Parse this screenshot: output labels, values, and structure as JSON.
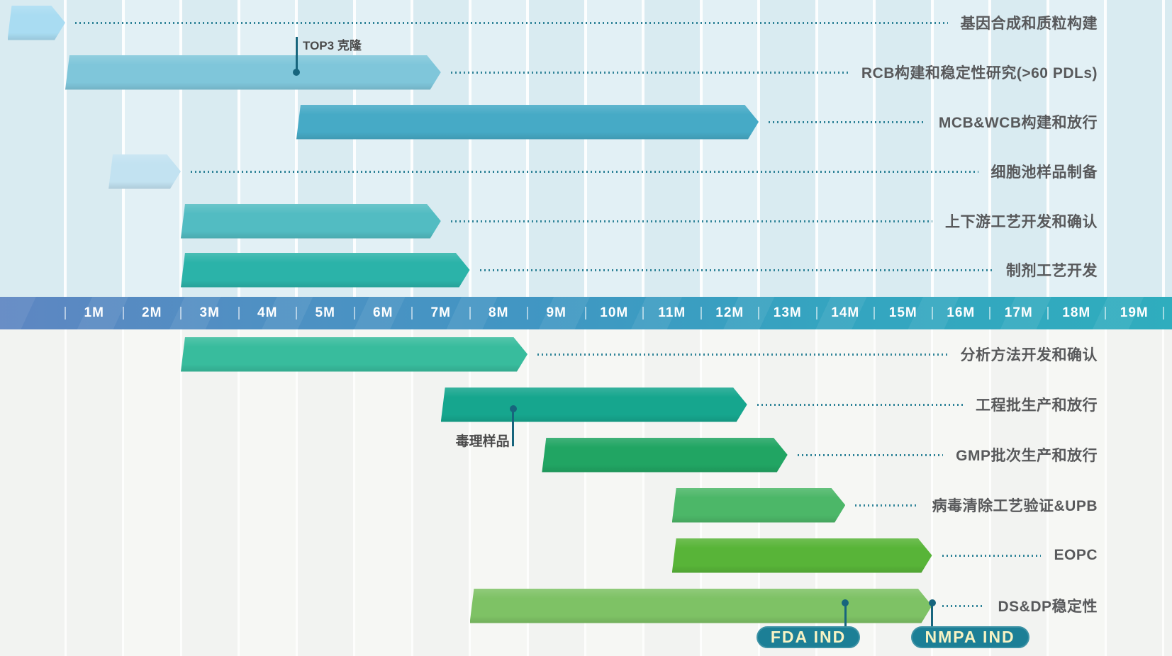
{
  "timeline": {
    "months": [
      "1M",
      "2M",
      "3M",
      "4M",
      "5M",
      "6M",
      "7M",
      "8M",
      "9M",
      "10M",
      "11M",
      "12M",
      "13M",
      "14M",
      "15M",
      "16M",
      "17M",
      "18M",
      "19M"
    ]
  },
  "colors": {
    "top_background": "#d9ebf1",
    "top_background_alt": "#e2f0f5",
    "bottom_background": "#f2f3f1",
    "bottom_background_alt": "#f6f7f4",
    "timeline_gradient_left": "#5e86c2",
    "timeline_gradient_right": "#2fadbe",
    "leader_dots": "#2f8398",
    "annotation": "#17657d",
    "label_text": "#58595b",
    "badge_background": "#1c7f96",
    "badge_text": "#f7f3c4"
  },
  "chart_data": {
    "type": "bar",
    "subtype": "gantt",
    "unit": "months",
    "axis": {
      "tick_labels": [
        "1M",
        "2M",
        "3M",
        "4M",
        "5M",
        "6M",
        "7M",
        "8M",
        "9M",
        "10M",
        "11M",
        "12M",
        "13M",
        "14M",
        "15M",
        "16M",
        "17M",
        "18M",
        "19M"
      ],
      "range_months": [
        -1,
        19
      ],
      "grid": true
    },
    "tasks": [
      {
        "label": "基因合成和质粒构建",
        "start": -1,
        "end": 0,
        "color": "#a9dcf2",
        "section": "top"
      },
      {
        "label": "RCB构建和稳定性研究(>60 PDLs)",
        "start": 0,
        "end": 6.5,
        "color": "#7fc6da",
        "section": "top",
        "annotation": {
          "text": "TOP3 克隆",
          "at": 4,
          "placement": "above"
        }
      },
      {
        "label": "MCB&WCB构建和放行",
        "start": 4,
        "end": 12,
        "color": "#46aac6",
        "section": "top"
      },
      {
        "label": "细胞池样品制备",
        "start": 0.75,
        "end": 2,
        "color": "#c2e2f1",
        "section": "top"
      },
      {
        "label": "上下游工艺开发和确认",
        "start": 2,
        "end": 6.5,
        "color": "#52bcc2",
        "section": "top"
      },
      {
        "label": "制剂工艺开发",
        "start": 2,
        "end": 7,
        "color": "#2bb3a9",
        "section": "top"
      },
      {
        "label": "分析方法开发和确认",
        "start": 2,
        "end": 8,
        "color": "#38bc9d",
        "section": "bottom"
      },
      {
        "label": "工程批生产和放行",
        "start": 6.5,
        "end": 11.8,
        "color": "#16a68e",
        "section": "bottom",
        "annotation": {
          "text": "毒理样品",
          "at": 7.75,
          "placement": "below"
        }
      },
      {
        "label": "GMP批次生产和放行",
        "start": 8.25,
        "end": 12.5,
        "color": "#21a563",
        "section": "bottom"
      },
      {
        "label": "病毒清除工艺验证&UPB",
        "start": 10.5,
        "end": 13.5,
        "color": "#4cb768",
        "section": "bottom"
      },
      {
        "label": "EOPC",
        "start": 10.5,
        "end": 15,
        "color": "#58b438",
        "section": "bottom"
      },
      {
        "label": "DS&DP稳定性",
        "start": 7,
        "end": 15,
        "color": "#7ec265",
        "section": "bottom",
        "markers": [
          {
            "text": "FDA IND",
            "at": 13.5
          },
          {
            "text": "NMPA IND",
            "at": 15
          }
        ]
      }
    ]
  }
}
